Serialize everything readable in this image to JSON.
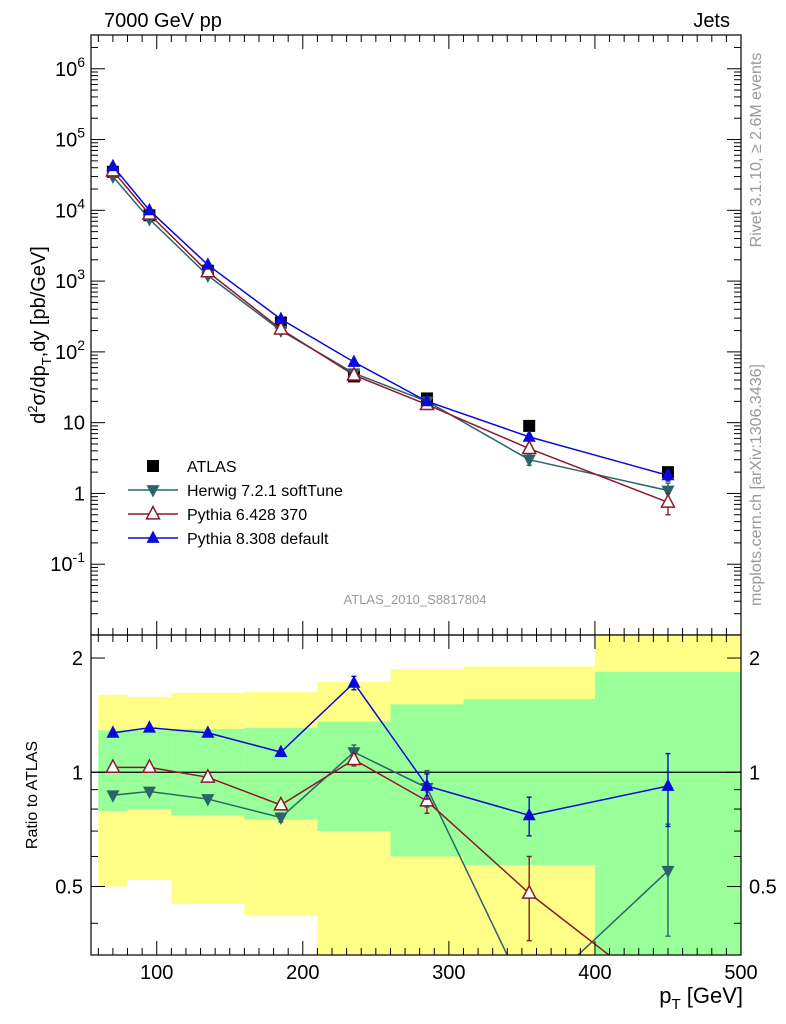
{
  "header": {
    "left": "7000 GeV pp",
    "right": "Jets"
  },
  "side_text": {
    "rivet": "Rivet 3.1.10, ≥ 2.6M events",
    "mcplots": "mcplots.cern.ch [arXiv:1306.3436]"
  },
  "analysis_label": "ATLAS_2010_S8817804",
  "chart_data": [
    {
      "type": "scatter",
      "panel": "main",
      "ylabel": "d²σ/dp_T,dy [pb/GeV]",
      "yscale": "log",
      "xlim": [
        55,
        500
      ],
      "ylim": [
        0.01,
        3000000
      ],
      "y_tick_labels": [
        "10^-1",
        "1",
        "10",
        "10^2",
        "10^3",
        "10^4",
        "10^5",
        "10^6"
      ],
      "legend_position": "lower-left",
      "series": [
        {
          "name": "ATLAS",
          "color": "#000000",
          "marker": "square",
          "x": [
            70,
            95,
            135,
            185,
            235,
            285,
            355,
            450
          ],
          "y": [
            35000,
            8500,
            1400,
            260,
            45,
            22,
            9,
            2
          ]
        },
        {
          "name": "Herwig 7.2.1 softTune",
          "color": "#2a6469",
          "marker": "triangle-down",
          "x": [
            70,
            95,
            135,
            185,
            235,
            285,
            355,
            450
          ],
          "y": [
            30000,
            7500,
            1200,
            200,
            50,
            20,
            3,
            1.1
          ],
          "yerr": [
            0,
            0,
            0,
            0,
            0,
            0,
            0.5,
            0.3
          ]
        },
        {
          "name": "Pythia 6.428 370",
          "color": "#8b1a2a",
          "marker": "triangle-open",
          "x": [
            70,
            95,
            135,
            185,
            235,
            285,
            355,
            450
          ],
          "y": [
            36000,
            8800,
            1350,
            210,
            47,
            18,
            4.3,
            0.75
          ],
          "yerr": [
            0,
            0,
            0,
            0,
            0,
            0,
            0.5,
            0.25
          ]
        },
        {
          "name": "Pythia 8.308 default",
          "color": "#0a0ad8",
          "marker": "triangle",
          "x": [
            70,
            95,
            135,
            185,
            235,
            285,
            355,
            450
          ],
          "y": [
            42000,
            10000,
            1700,
            290,
            72,
            20,
            6.3,
            1.8
          ],
          "yerr": [
            0,
            0,
            0,
            0,
            0,
            0,
            0.4,
            0.3
          ]
        }
      ]
    },
    {
      "type": "line",
      "panel": "ratio",
      "xlabel": "p_T [GeV]",
      "ylabel": "Ratio to ATLAS",
      "xlim": [
        55,
        500
      ],
      "ylim": [
        0.33,
        2.3
      ],
      "x_ticks": [
        100,
        200,
        300,
        400,
        500
      ],
      "y_ticks": [
        0.5,
        1,
        2
      ],
      "reference_line": 1,
      "bands": {
        "bin_edges": [
          60,
          80,
          110,
          160,
          210,
          260,
          310,
          400,
          500
        ],
        "outer": {
          "color": "#ffff88",
          "low": [
            0.5,
            0.52,
            0.45,
            0.42,
            0.33,
            0.33,
            0.33,
            0.33
          ],
          "high": [
            1.6,
            1.58,
            1.62,
            1.63,
            1.73,
            1.87,
            1.9,
            2.3
          ]
        },
        "inner": {
          "color": "#99ff99",
          "low": [
            0.79,
            0.8,
            0.77,
            0.75,
            0.7,
            0.6,
            0.57,
            0.33
          ],
          "high": [
            1.29,
            1.29,
            1.3,
            1.31,
            1.36,
            1.51,
            1.56,
            1.84
          ]
        }
      },
      "series": [
        {
          "name": "Herwig 7.2.1 softTune",
          "color": "#2a6469",
          "marker": "triangle-down",
          "x": [
            70,
            95,
            135,
            185,
            235,
            285,
            355,
            450
          ],
          "y": [
            0.87,
            0.89,
            0.85,
            0.76,
            1.13,
            0.91,
            0.33,
            0.55
          ],
          "yerr": [
            0,
            0,
            0,
            0.02,
            0.05,
            0.1,
            0,
            0.18
          ]
        },
        {
          "name": "Pythia 6.428 370",
          "color": "#8b1a2a",
          "marker": "triangle-open",
          "x": [
            70,
            95,
            135,
            185,
            235,
            285,
            355,
            450
          ],
          "y": [
            1.03,
            1.03,
            0.97,
            0.82,
            1.08,
            0.84,
            0.48,
            0.33
          ],
          "yerr": [
            0,
            0,
            0,
            0,
            0.04,
            0.06,
            0.12,
            0
          ]
        },
        {
          "name": "Pythia 8.308 default",
          "color": "#0a0ad8",
          "marker": "triangle",
          "x": [
            70,
            95,
            135,
            185,
            235,
            285,
            355,
            450
          ],
          "y": [
            1.27,
            1.31,
            1.27,
            1.13,
            1.72,
            0.92,
            0.77,
            0.92
          ],
          "yerr": [
            0,
            0,
            0,
            0,
            0.07,
            0.07,
            0.09,
            0.2
          ]
        }
      ]
    }
  ]
}
